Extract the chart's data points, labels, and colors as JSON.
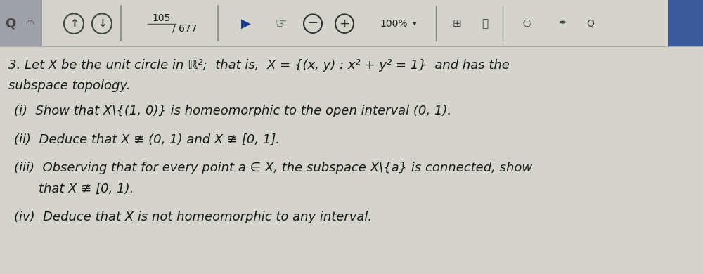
{
  "toolbar_bg": "#c8c8cc",
  "toolbar_text_color": "#222222",
  "page_info": "105  / 677",
  "percent": "100%",
  "content_bg": "#d4d4cc",
  "text_color": "#1a1a1a",
  "title_line1": "3. Let X be the unit circle in ℝ²; that is, X = {(x, y) : x² + y² = 1} and has the",
  "title_line2": "subspace topology.",
  "line1": "(i)  Show that X\\{(1,0)} is homeomorphic to the open interval (0, 1).",
  "line2": "(ii)  Deduce that X ≇ (0, 1) and X ≇ [0, 1].",
  "line3a": "(iii)  Observing that for every point a ∈ X, the subspace X\\{a} is connected, show",
  "line3b": "        that X ≇ [0, 1).",
  "line4": "(iv)  Deduce that X is not homeomorphic to any interval.",
  "figsize": [
    10.0,
    3.9
  ],
  "dpi": 100
}
